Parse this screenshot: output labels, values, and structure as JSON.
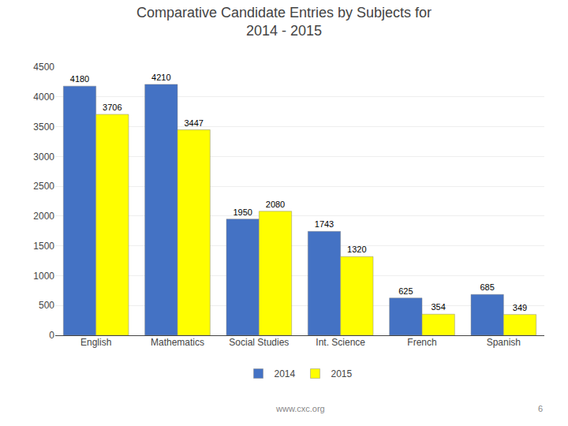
{
  "chart_data": {
    "type": "bar",
    "title": "Comparative Candidate Entries by Subjects for",
    "subtitle": "2014 - 2015",
    "categories": [
      "English",
      "Mathematics",
      "Social Studies",
      "Int. Science",
      "French",
      "Spanish"
    ],
    "series": [
      {
        "name": "2014",
        "color": "#4472C4",
        "values": [
          4180,
          4210,
          1950,
          1743,
          625,
          685
        ]
      },
      {
        "name": "2015",
        "color": "#FFFF00",
        "values": [
          3706,
          3447,
          2080,
          1320,
          354,
          349
        ]
      }
    ],
    "ylim": [
      0,
      4500
    ],
    "yticks": [
      0,
      500,
      1000,
      1500,
      2000,
      2500,
      3000,
      3500,
      4000,
      4500
    ],
    "grid": true,
    "legend": "bottom",
    "data_labels": true,
    "annotations": [
      "www.cxc.org",
      "6"
    ]
  }
}
